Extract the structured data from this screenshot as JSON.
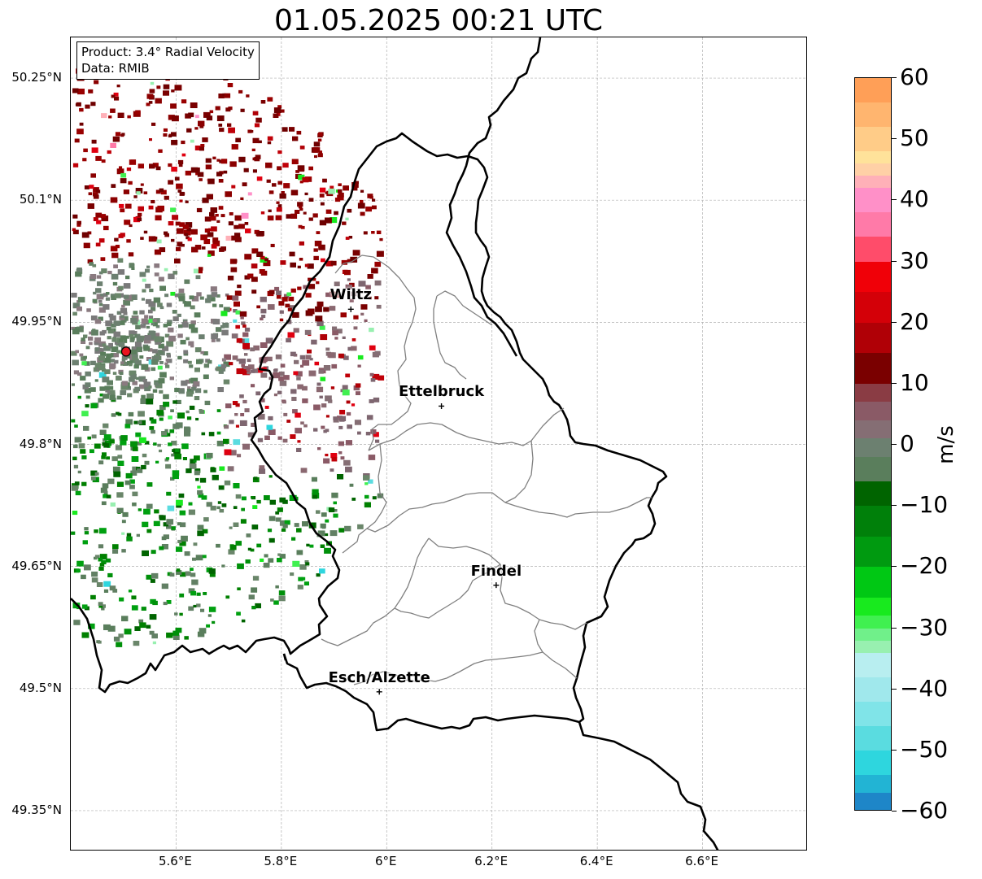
{
  "title": "01.05.2025 00:21 UTC",
  "info_box": {
    "product": "Product: 3.4° Radial Velocity",
    "source": "Data: RMIB"
  },
  "map": {
    "lon_range": [
      5.4,
      6.8
    ],
    "lat_range": [
      49.3,
      50.3
    ],
    "lat_ticks": [
      {
        "value": 50.25,
        "label": "50.25°N"
      },
      {
        "value": 50.1,
        "label": "50.1°N"
      },
      {
        "value": 49.95,
        "label": "49.95°N"
      },
      {
        "value": 49.8,
        "label": "49.8°N"
      },
      {
        "value": 49.65,
        "label": "49.65°N"
      },
      {
        "value": 49.5,
        "label": "49.5°N"
      },
      {
        "value": 49.35,
        "label": "49.35°N"
      }
    ],
    "lon_ticks": [
      {
        "value": 5.6,
        "label": "5.6°E"
      },
      {
        "value": 5.8,
        "label": "5.8°E"
      },
      {
        "value": 6.0,
        "label": "6°E"
      },
      {
        "value": 6.2,
        "label": "6.2°E"
      },
      {
        "value": 6.4,
        "label": "6.4°E"
      },
      {
        "value": 6.6,
        "label": "6.6°E"
      }
    ],
    "radar_site": {
      "lon": 5.505,
      "lat": 49.914,
      "color": "#e8141e"
    },
    "cities": [
      {
        "name": "Wiltz",
        "lon": 5.932,
        "lat": 49.966
      },
      {
        "name": "Ettelbruck",
        "lon": 6.104,
        "lat": 49.847
      },
      {
        "name": "Findel",
        "lon": 6.208,
        "lat": 49.627
      },
      {
        "name": "Esch/Alzette",
        "lon": 5.986,
        "lat": 49.496
      }
    ],
    "border_color": "#000000",
    "canton_color": "#808080",
    "grid": true
  },
  "colorbar": {
    "units": "m/s",
    "min": -60,
    "max": 60,
    "ticks": [
      {
        "value": 60,
        "label": "60"
      },
      {
        "value": 50,
        "label": "50"
      },
      {
        "value": 40,
        "label": "40"
      },
      {
        "value": 30,
        "label": "30"
      },
      {
        "value": 20,
        "label": "20"
      },
      {
        "value": 10,
        "label": "10"
      },
      {
        "value": 0,
        "label": "0"
      },
      {
        "value": -10,
        "label": "−10"
      },
      {
        "value": -20,
        "label": "−20"
      },
      {
        "value": -30,
        "label": "−30"
      },
      {
        "value": -40,
        "label": "−40"
      },
      {
        "value": -50,
        "label": "−50"
      },
      {
        "value": -60,
        "label": "−60"
      }
    ],
    "stops": [
      {
        "from": 56,
        "to": 60,
        "color": "#ff9f57"
      },
      {
        "from": 52,
        "to": 56,
        "color": "#ffb56f"
      },
      {
        "from": 48,
        "to": 52,
        "color": "#ffcc88"
      },
      {
        "from": 46,
        "to": 48,
        "color": "#ffe29a"
      },
      {
        "from": 44,
        "to": 46,
        "color": "#ffd0a6"
      },
      {
        "from": 42,
        "to": 44,
        "color": "#ffb0b8"
      },
      {
        "from": 38,
        "to": 42,
        "color": "#ff90c8"
      },
      {
        "from": 34,
        "to": 38,
        "color": "#ff7aa8"
      },
      {
        "from": 30,
        "to": 34,
        "color": "#ff4c6a"
      },
      {
        "from": 25,
        "to": 30,
        "color": "#f00008"
      },
      {
        "from": 20,
        "to": 25,
        "color": "#d40008"
      },
      {
        "from": 15,
        "to": 20,
        "color": "#b00006"
      },
      {
        "from": 10,
        "to": 15,
        "color": "#7a0000"
      },
      {
        "from": 7,
        "to": 10,
        "color": "#8a3c44"
      },
      {
        "from": 4,
        "to": 7,
        "color": "#8a5a66"
      },
      {
        "from": 1,
        "to": 4,
        "color": "#856e74"
      },
      {
        "from": -2,
        "to": 1,
        "color": "#6c8070"
      },
      {
        "from": -6,
        "to": -2,
        "color": "#5a7e5c"
      },
      {
        "from": -10,
        "to": -6,
        "color": "#006400"
      },
      {
        "from": -15,
        "to": -10,
        "color": "#00800a"
      },
      {
        "from": -20,
        "to": -15,
        "color": "#009a10"
      },
      {
        "from": -25,
        "to": -20,
        "color": "#00c814"
      },
      {
        "from": -28,
        "to": -25,
        "color": "#18ea1e"
      },
      {
        "from": -30,
        "to": -28,
        "color": "#40f050"
      },
      {
        "from": -32,
        "to": -30,
        "color": "#70f08a"
      },
      {
        "from": -34,
        "to": -32,
        "color": "#98f0b0"
      },
      {
        "from": -38,
        "to": -34,
        "color": "#b8eef0"
      },
      {
        "from": -42,
        "to": -38,
        "color": "#a0e8ec"
      },
      {
        "from": -46,
        "to": -42,
        "color": "#80e4e8"
      },
      {
        "from": -50,
        "to": -46,
        "color": "#5adce0"
      },
      {
        "from": -54,
        "to": -50,
        "color": "#2ed6de"
      },
      {
        "from": -57,
        "to": -54,
        "color": "#22b4d4"
      },
      {
        "from": -60,
        "to": -57,
        "color": "#1e86c8"
      }
    ]
  }
}
